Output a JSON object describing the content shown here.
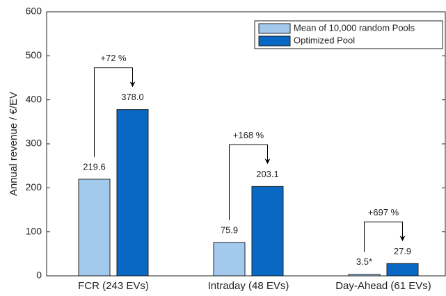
{
  "chart_data": {
    "type": "bar",
    "y_label": "Annual revenue / €/EV",
    "categories": [
      "FCR (243 EVs)",
      "Intraday (48 EVs)",
      "Day-Ahead (61 EVs)"
    ],
    "series": [
      {
        "name": "Mean of 10,000 random Pools",
        "color": "#a3c9ec",
        "values": [
          219.6,
          75.9,
          3.5
        ],
        "value_labels": [
          "219.6",
          "75.9",
          "3.5*"
        ]
      },
      {
        "name": "Optimized Pool",
        "color": "#0868c4",
        "values": [
          378.0,
          203.1,
          27.9
        ],
        "value_labels": [
          "378.0",
          "203.1",
          "27.9"
        ]
      }
    ],
    "annotations": [
      "+72 %",
      "+168 %",
      "+697 %"
    ],
    "ylim": [
      0,
      600
    ],
    "yticks": [
      0,
      100,
      200,
      300,
      400,
      500,
      600
    ],
    "grid": false,
    "legend": "upper right"
  }
}
